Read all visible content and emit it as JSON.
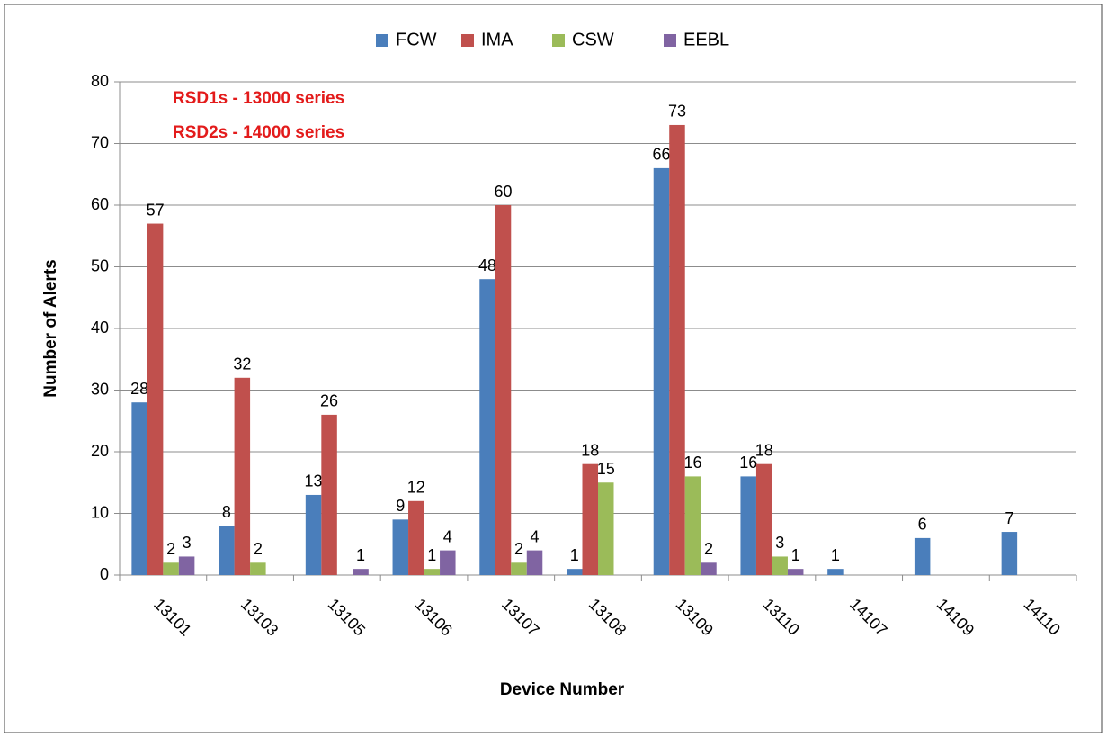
{
  "chart_data": {
    "type": "bar",
    "x_label": "Device Number",
    "y_label": "Number of Alerts",
    "annotations": [
      "RSD1s - 13000 series",
      "RSD2s - 14000 series"
    ],
    "categories": [
      "13101",
      "13103",
      "13105",
      "13106",
      "13107",
      "13108",
      "13109",
      "13110",
      "14107",
      "14109",
      "14110"
    ],
    "series": [
      {
        "name": "FCW",
        "color": "#4a7ebb",
        "values": [
          28,
          8,
          13,
          9,
          48,
          1,
          66,
          16,
          1,
          6,
          7
        ]
      },
      {
        "name": "IMA",
        "color": "#c0504d",
        "values": [
          57,
          32,
          26,
          12,
          60,
          18,
          73,
          18,
          null,
          null,
          null
        ]
      },
      {
        "name": "CSW",
        "color": "#9bbb59",
        "values": [
          2,
          2,
          null,
          1,
          2,
          15,
          16,
          3,
          null,
          null,
          null
        ]
      },
      {
        "name": "EEBL",
        "color": "#8064a2",
        "values": [
          3,
          null,
          1,
          4,
          4,
          null,
          2,
          1,
          null,
          null,
          null
        ]
      }
    ],
    "ylim": [
      0,
      80
    ],
    "yticks": [
      0,
      10,
      20,
      30,
      40,
      50,
      60,
      70,
      80
    ],
    "grid": true,
    "legend": "top"
  }
}
